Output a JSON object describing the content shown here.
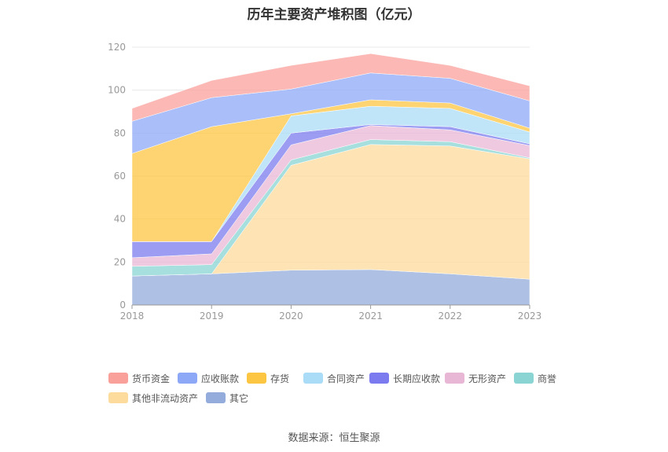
{
  "title": "历年主要资产堆积图（亿元）",
  "source": "数据来源：恒生聚源",
  "chart_data": {
    "type": "area",
    "stacked": true,
    "categories": [
      "2018",
      "2019",
      "2020",
      "2021",
      "2022",
      "2023"
    ],
    "ylim": [
      0,
      120
    ],
    "yticks": [
      0,
      20,
      40,
      60,
      80,
      100,
      120
    ],
    "grid": true,
    "legend_position": "bottom",
    "series": [
      {
        "name": "其它",
        "color": "#93acdb",
        "values": [
          13.5,
          14.5,
          16.2,
          16.5,
          14.5,
          12
        ]
      },
      {
        "name": "其他非流动资产",
        "color": "#fddb9c",
        "values": [
          0,
          0,
          48.8,
          58.2,
          59.5,
          56
        ]
      },
      {
        "name": "商誉",
        "color": "#8ad4d4",
        "values": [
          4.5,
          4.3,
          2.5,
          2.3,
          2.0,
          0.5
        ]
      },
      {
        "name": "无形资产",
        "color": "#e8b7d6",
        "values": [
          4,
          5,
          7,
          6.5,
          5.5,
          5.7
        ]
      },
      {
        "name": "长期应收款",
        "color": "#7b7bef",
        "values": [
          7.5,
          5.7,
          5.5,
          0.5,
          1.5,
          0.8
        ]
      },
      {
        "name": "合同资产",
        "color": "#abdcf7",
        "values": [
          0,
          0,
          8,
          8.5,
          8.5,
          5.5
        ]
      },
      {
        "name": "存货",
        "color": "#fcc542",
        "values": [
          41,
          53.5,
          1,
          3,
          2.5,
          1.8
        ]
      },
      {
        "name": "应收账款",
        "color": "#8da8f7",
        "values": [
          15,
          13.5,
          11.5,
          12.5,
          11.5,
          12.7
        ]
      },
      {
        "name": "货币资金",
        "color": "#f9a09b",
        "values": [
          6,
          8,
          11,
          9,
          6,
          7
        ]
      }
    ]
  },
  "legend": [
    {
      "name": "货币资金",
      "color": "#f9a09b"
    },
    {
      "name": "应收账款",
      "color": "#8da8f7"
    },
    {
      "name": "存货",
      "color": "#fcc542"
    },
    {
      "name": "合同资产",
      "color": "#abdcf7"
    },
    {
      "name": "长期应收款",
      "color": "#7b7bef"
    },
    {
      "name": "无形资产",
      "color": "#e8b7d6"
    },
    {
      "name": "商誉",
      "color": "#8ad4d4"
    },
    {
      "name": "其他非流动资产",
      "color": "#fddb9c"
    },
    {
      "name": "其它",
      "color": "#93acdb"
    }
  ]
}
